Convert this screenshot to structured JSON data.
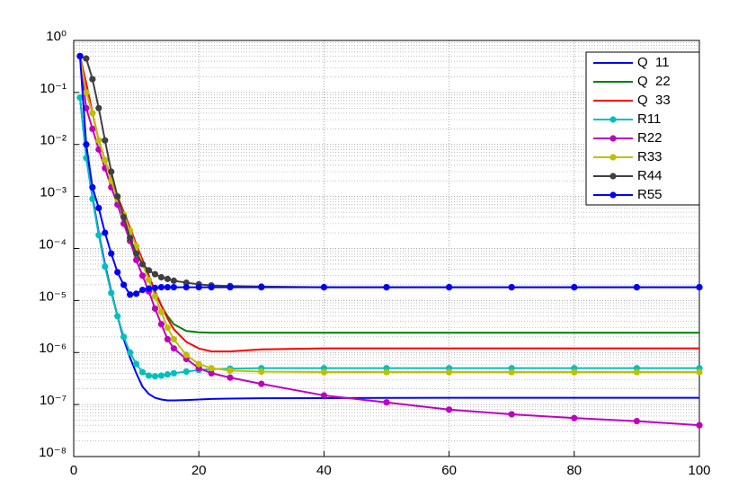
{
  "chart_data": {
    "type": "line",
    "log_y": true,
    "grid": true,
    "minor_grid": true,
    "legend": "northeast",
    "x": [
      1,
      2,
      3,
      4,
      5,
      6,
      7,
      8,
      9,
      10,
      11,
      12,
      13,
      14,
      15,
      16,
      18,
      20,
      22,
      25,
      30,
      40,
      50,
      60,
      70,
      80,
      90,
      100
    ],
    "xlim": [
      0,
      100
    ],
    "xticks": [
      0,
      20,
      40,
      60,
      80,
      100
    ],
    "ylim": [
      1e-08,
      1
    ],
    "yticks": [
      {
        "value": 1e-08,
        "label": "10⁻⁸"
      },
      {
        "value": 1e-07,
        "label": "10⁻⁷"
      },
      {
        "value": 1e-06,
        "label": "10⁻⁶"
      },
      {
        "value": 1e-05,
        "label": "10⁻⁵"
      },
      {
        "value": 0.0001,
        "label": "10⁻⁴"
      },
      {
        "value": 0.001,
        "label": "10⁻³"
      },
      {
        "value": 0.01,
        "label": "10⁻²"
      },
      {
        "value": 0.1,
        "label": "10⁻¹"
      },
      {
        "value": 1,
        "label": "10⁰"
      }
    ],
    "series": [
      {
        "name": "Q  11",
        "color": "#0000ff",
        "marker": false,
        "values": [
          0.08,
          0.006,
          0.001,
          0.0002,
          5e-05,
          1.5e-05,
          5e-06,
          1.8e-06,
          8e-07,
          4e-07,
          2.2e-07,
          1.6e-07,
          1.35e-07,
          1.25e-07,
          1.2e-07,
          1.2e-07,
          1.22e-07,
          1.25e-07,
          1.28e-07,
          1.3e-07,
          1.32e-07,
          1.33e-07,
          1.34e-07,
          1.35e-07,
          1.35e-07,
          1.35e-07,
          1.35e-07,
          1.35e-07
        ]
      },
      {
        "name": "Q  22",
        "color": "#007f00",
        "marker": false,
        "values": [
          0.5,
          0.15,
          0.04,
          0.012,
          0.005,
          0.0022,
          0.001,
          0.0005,
          0.00025,
          0.00012,
          6e-05,
          3e-05,
          1.5e-05,
          8e-06,
          5e-06,
          3.5e-06,
          2.6e-06,
          2.45e-06,
          2.4e-06,
          2.4e-06,
          2.4e-06,
          2.4e-06,
          2.4e-06,
          2.4e-06,
          2.4e-06,
          2.4e-06,
          2.4e-06,
          2.4e-06
        ]
      },
      {
        "name": "Q  33",
        "color": "#ff0000",
        "marker": false,
        "values": [
          0.5,
          0.15,
          0.04,
          0.012,
          0.005,
          0.0022,
          0.001,
          0.0005,
          0.00025,
          0.00012,
          6e-05,
          3e-05,
          1.5e-05,
          8e-06,
          4.5e-06,
          2.8e-06,
          1.6e-06,
          1.2e-06,
          1.05e-06,
          1.05e-06,
          1.15e-06,
          1.2e-06,
          1.2e-06,
          1.2e-06,
          1.2e-06,
          1.2e-06,
          1.2e-06,
          1.2e-06
        ]
      },
      {
        "name": "R11",
        "color": "#00bfbf",
        "marker": true,
        "values": [
          0.08,
          0.0055,
          0.0009,
          0.00018,
          4.5e-05,
          1.4e-05,
          5e-06,
          2e-06,
          1e-06,
          6e-07,
          4.2e-07,
          3.6e-07,
          3.5e-07,
          3.6e-07,
          3.8e-07,
          4e-07,
          4.3e-07,
          4.6e-07,
          4.8e-07,
          4.9e-07,
          5e-07,
          5e-07,
          5e-07,
          5e-07,
          5e-07,
          5e-07,
          5e-07,
          5e-07
        ]
      },
      {
        "name": "R22",
        "color": "#bf00bf",
        "marker": true,
        "values": [
          0.5,
          0.05,
          0.02,
          0.008,
          0.0035,
          0.0015,
          0.0007,
          0.0003,
          0.00014,
          6e-05,
          3e-05,
          1.5e-05,
          7e-06,
          3.5e-06,
          1.8e-06,
          1.2e-06,
          7.5e-07,
          5e-07,
          4e-07,
          3.3e-07,
          2.5e-07,
          1.5e-07,
          1.1e-07,
          8e-08,
          6.5e-08,
          5.5e-08,
          4.8e-08,
          4e-08
        ]
      },
      {
        "name": "R33",
        "color": "#bfbf00",
        "marker": true,
        "values": [
          0.5,
          0.1,
          0.04,
          0.012,
          0.005,
          0.002,
          0.0009,
          0.00045,
          0.00022,
          0.00011,
          5e-05,
          2.5e-05,
          1.2e-05,
          6e-06,
          3e-06,
          1.8e-06,
          9e-07,
          6e-07,
          5e-07,
          4.5e-07,
          4.3e-07,
          4.2e-07,
          4.2e-07,
          4.2e-07,
          4.2e-07,
          4.2e-07,
          4.2e-07,
          4.2e-07
        ]
      },
      {
        "name": "R44",
        "color": "#404040",
        "marker": true,
        "values": [
          0.5,
          0.45,
          0.18,
          0.05,
          0.012,
          0.003,
          0.001,
          0.0004,
          0.00016,
          8e-05,
          5e-05,
          3.8e-05,
          3.2e-05,
          2.8e-05,
          2.6e-05,
          2.4e-05,
          2.2e-05,
          2.05e-05,
          1.95e-05,
          1.9e-05,
          1.85e-05,
          1.8e-05,
          1.8e-05,
          1.8e-05,
          1.8e-05,
          1.8e-05,
          1.8e-05,
          1.8e-05
        ]
      },
      {
        "name": "R55",
        "color": "#0000ff",
        "marker": true,
        "values": [
          0.5,
          0.01,
          0.0015,
          0.0006,
          0.0002,
          8e-05,
          3.5e-05,
          2e-05,
          1.3e-05,
          1.35e-05,
          1.6e-05,
          1.7e-05,
          1.75e-05,
          1.8e-05,
          1.8e-05,
          1.8e-05,
          1.8e-05,
          1.8e-05,
          1.8e-05,
          1.8e-05,
          1.8e-05,
          1.8e-05,
          1.8e-05,
          1.8e-05,
          1.8e-05,
          1.8e-05,
          1.8e-05,
          1.8e-05
        ]
      }
    ]
  }
}
